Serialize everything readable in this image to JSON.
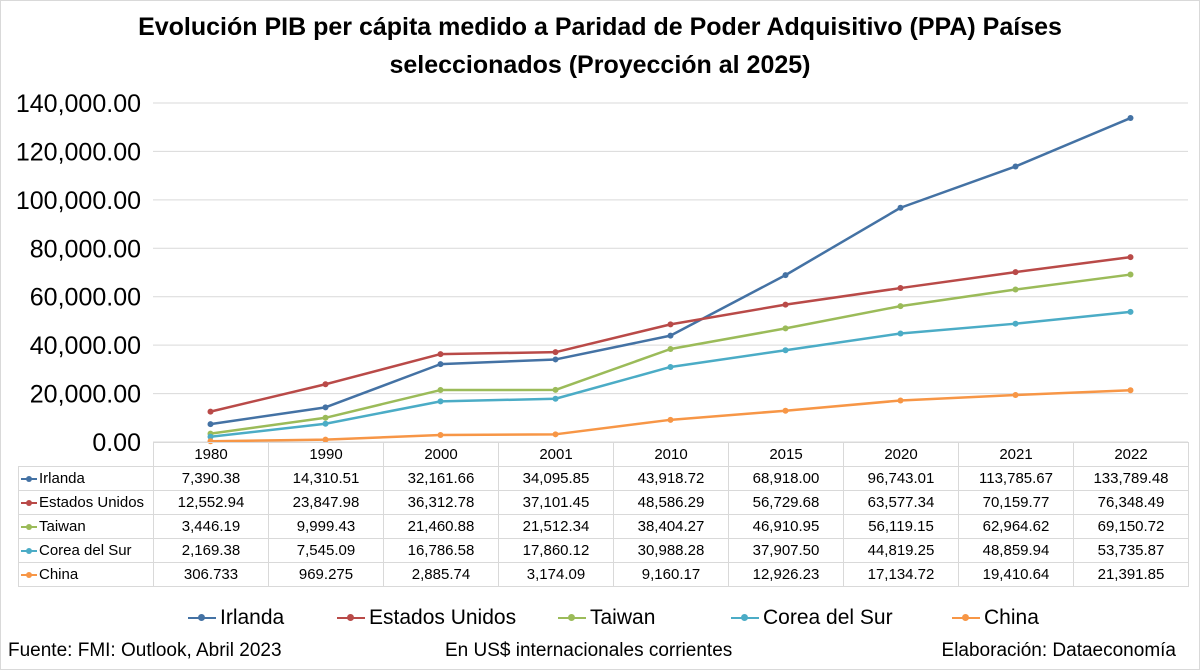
{
  "chart_data": {
    "type": "line",
    "title": "Evolución PIB per cápita medido a Paridad de Poder Adquisitivo (PPA)  Países seleccionados (Proyección al 2025)",
    "categories": [
      "1980",
      "1990",
      "2000",
      "2001",
      "2010",
      "2015",
      "2020",
      "2021",
      "2022"
    ],
    "ylim": [
      0,
      140000
    ],
    "yticks": [
      0,
      20000,
      40000,
      60000,
      80000,
      100000,
      120000,
      140000
    ],
    "ytick_labels": [
      "0.00",
      "20,000.00",
      "40,000.00",
      "60,000.00",
      "80,000.00",
      "100,000.00",
      "120,000.00",
      "140,000.00"
    ],
    "grid": true,
    "legend_position": "bottom",
    "series": [
      {
        "name": "Irlanda",
        "color": "#4472a4",
        "values": [
          7390.38,
          14310.51,
          32161.66,
          34095.85,
          43918.72,
          68918.0,
          96743.01,
          113785.67,
          133789.48
        ],
        "labels": [
          "7,390.38",
          "14,310.51",
          "32,161.66",
          "34,095.85",
          "43,918.72",
          "68,918.00",
          "96,743.01",
          "113,785.67",
          "133,789.48"
        ]
      },
      {
        "name": "Estados Unidos",
        "color": "#b94a48",
        "values": [
          12552.94,
          23847.98,
          36312.78,
          37101.45,
          48586.29,
          56729.68,
          63577.34,
          70159.77,
          76348.49
        ],
        "labels": [
          "12,552.94",
          "23,847.98",
          "36,312.78",
          "37,101.45",
          "48,586.29",
          "56,729.68",
          "63,577.34",
          "70,159.77",
          "76,348.49"
        ]
      },
      {
        "name": "Taiwan",
        "color": "#9bbb59",
        "values": [
          3446.19,
          9999.43,
          21460.88,
          21512.34,
          38404.27,
          46910.95,
          56119.15,
          62964.62,
          69150.72
        ],
        "labels": [
          "3,446.19",
          "9,999.43",
          "21,460.88",
          "21,512.34",
          "38,404.27",
          "46,910.95",
          "56,119.15",
          "62,964.62",
          "69,150.72"
        ]
      },
      {
        "name": "Corea del Sur",
        "color": "#4bacc6",
        "values": [
          2169.38,
          7545.09,
          16786.58,
          17860.12,
          30988.28,
          37907.5,
          44819.25,
          48859.94,
          53735.87
        ],
        "labels": [
          "2,169.38",
          "7,545.09",
          "16,786.58",
          "17,860.12",
          "30,988.28",
          "37,907.50",
          "44,819.25",
          "48,859.94",
          "53,735.87"
        ]
      },
      {
        "name": "China",
        "color": "#f79646",
        "values": [
          306.733,
          969.275,
          2885.74,
          3174.09,
          9160.17,
          12926.23,
          17134.72,
          19410.64,
          21391.85
        ],
        "labels": [
          "306.733",
          "969.275",
          "2,885.74",
          "3,174.09",
          "9,160.17",
          "12,926.23",
          "17,134.72",
          "19,410.64",
          "21,391.85"
        ]
      }
    ]
  },
  "footer": {
    "source": "Fuente: FMI: Outlook, Abril 2023",
    "units": "En US$ internacionales corrientes",
    "credit": "Elaboración: Dataeconomía"
  }
}
